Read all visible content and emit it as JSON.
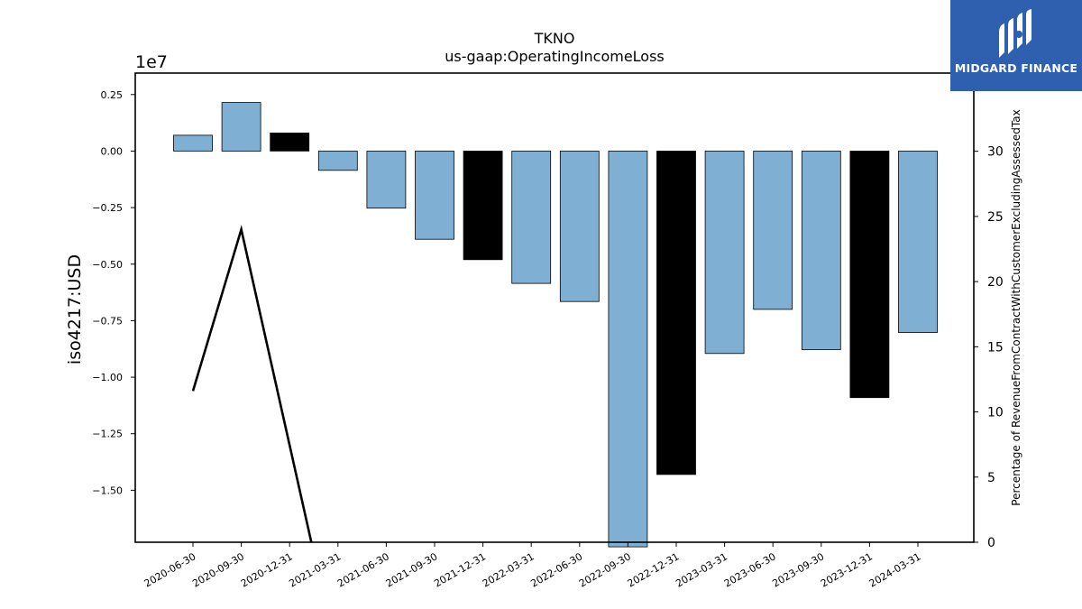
{
  "chart_data": {
    "type": "bar",
    "title": "TKNO",
    "subtitle": "us-gaap:OperatingIncomeLoss",
    "ylabel": "iso4217:USD",
    "ylabel_right": "Percentage of RevenueFromContractWithCustomerExcludingAssessedTax",
    "offset_label": "1e7",
    "categories": [
      "2020-06-30",
      "2020-09-30",
      "2020-12-31",
      "2021-03-31",
      "2021-06-30",
      "2021-09-30",
      "2021-12-31",
      "2022-03-31",
      "2022-06-30",
      "2022-09-30",
      "2022-12-31",
      "2023-03-31",
      "2023-06-30",
      "2023-09-30",
      "2023-12-31",
      "2024-03-31"
    ],
    "values": [
      700000,
      2150000,
      800000,
      -850000,
      -2520000,
      -3900000,
      -4800000,
      -5850000,
      -6650000,
      -17500000,
      -14300000,
      -8950000,
      -7000000,
      -8780000,
      -10900000,
      -8020000
    ],
    "bar_colors": [
      "#7fb0d4",
      "#7fb0d4",
      "#000000",
      "#7fb0d4",
      "#7fb0d4",
      "#7fb0d4",
      "#000000",
      "#7fb0d4",
      "#7fb0d4",
      "#7fb0d4",
      "#000000",
      "#7fb0d4",
      "#7fb0d4",
      "#7fb0d4",
      "#000000",
      "#7fb0d4"
    ],
    "ylim": [
      -17300000,
      3450000
    ],
    "yticks": [
      0.25,
      0.0,
      -0.25,
      -0.5,
      -0.75,
      -1.0,
      -1.25,
      -1.5
    ],
    "ytick_labels": [
      "0.25",
      "0.00",
      "−0.25",
      "−0.50",
      "−0.75",
      "−1.00",
      "−1.25",
      "−1.50"
    ],
    "line_series": {
      "axis": "right",
      "x_indices": [
        0,
        1,
        2.45
      ],
      "values": [
        11.6,
        24,
        0
      ],
      "color": "#000000"
    },
    "ylim_right": [
      0,
      36
    ],
    "yticks_right": [
      0,
      5,
      10,
      15,
      20,
      25,
      30
    ],
    "ytick_labels_right": [
      "0",
      "5",
      "10",
      "15",
      "20",
      "25",
      "30"
    ],
    "grid": false,
    "legend": "none"
  },
  "logo": {
    "text": "MIDGARD FINANCE"
  }
}
